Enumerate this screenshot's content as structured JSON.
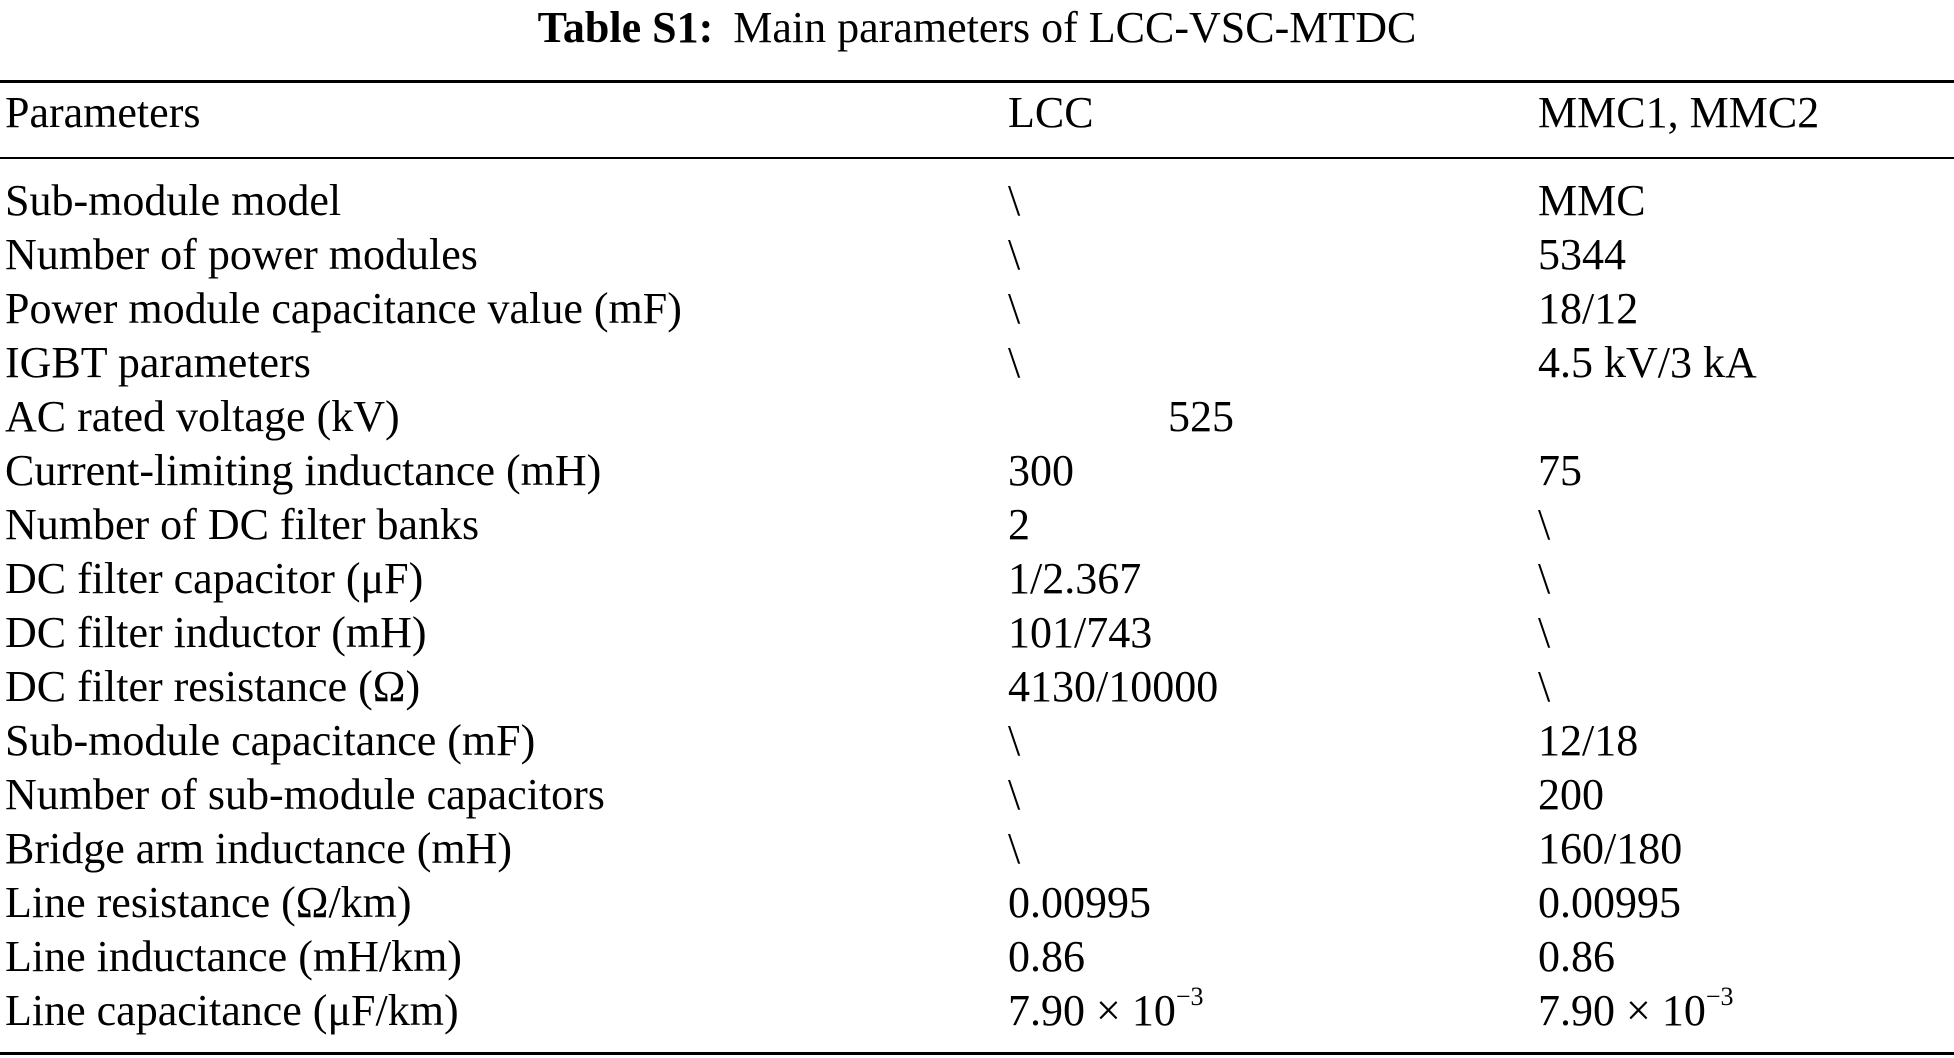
{
  "caption": {
    "label": "Table S1:",
    "title": "Main parameters of LCC-VSC-MTDC"
  },
  "table": {
    "headers": [
      "Parameters",
      "LCC",
      "MMC1, MMC2"
    ],
    "rows": [
      {
        "param": "Sub-module model",
        "lcc": "\\",
        "mmc": "MMC"
      },
      {
        "param": "Number of power modules",
        "lcc": "\\",
        "mmc": "5344"
      },
      {
        "param": "Power module capacitance value (mF)",
        "lcc": "\\",
        "mmc": "18/12"
      },
      {
        "param": "IGBT parameters",
        "lcc": "\\",
        "mmc": "4.5 kV/3 kA"
      },
      {
        "param": "AC rated voltage (kV)",
        "shared": "525"
      },
      {
        "param": "Current-limiting inductance (mH)",
        "lcc": "300",
        "mmc": "75"
      },
      {
        "param": "Number of DC filter banks",
        "lcc": "2",
        "mmc": "\\"
      },
      {
        "param": "DC filter capacitor (μF)",
        "lcc": "1/2.367",
        "mmc": "\\"
      },
      {
        "param": "DC filter inductor (mH)",
        "lcc": "101/743",
        "mmc": "\\"
      },
      {
        "param": "DC filter resistance (Ω)",
        "lcc": "4130/10000",
        "mmc": "\\"
      },
      {
        "param": "Sub-module capacitance (mF)",
        "lcc": "\\",
        "mmc": "12/18"
      },
      {
        "param": "Number of sub-module capacitors",
        "lcc": "\\",
        "mmc": "200"
      },
      {
        "param": "Bridge arm inductance (mH)",
        "lcc": "\\",
        "mmc": "160/180"
      },
      {
        "param": "Line resistance (Ω/km)",
        "lcc": "0.00995",
        "mmc": "0.00995"
      },
      {
        "param": "Line inductance (mH/km)",
        "lcc": "0.86",
        "mmc": "0.86"
      },
      {
        "param": "Line capacitance (μF/km)",
        "lcc": "7.90 × 10",
        "lcc_exp": "−3",
        "mmc": "7.90 × 10",
        "mmc_exp": "−3"
      }
    ]
  }
}
